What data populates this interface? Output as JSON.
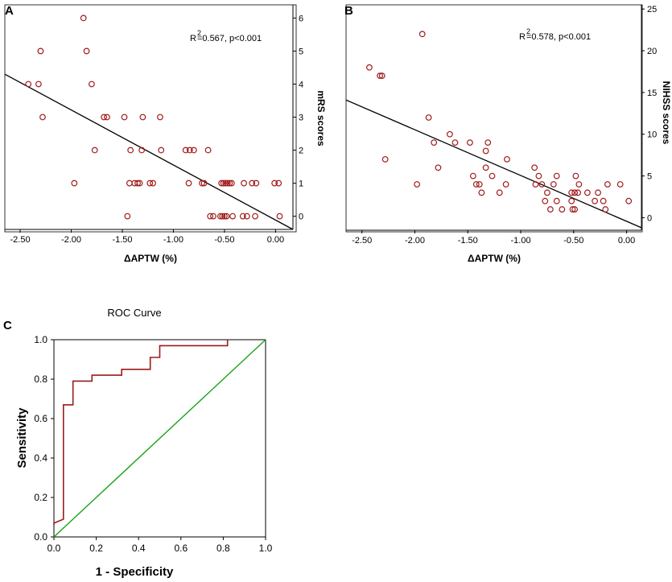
{
  "colors": {
    "marker": "#a01a1a",
    "regression": "#000000",
    "roc_curve": "#9b1b1b",
    "reference": "#1aa31a"
  },
  "chart_data": [
    {
      "panel": "A",
      "type": "scatter",
      "xlabel": "ΔAPTW (%)",
      "ylabel": "mRS scores",
      "xlim": [
        -2.65,
        0.17
      ],
      "ylim": [
        -0.4,
        6.4
      ],
      "xticks": [
        "-2.50",
        "-2.00",
        "-1.50",
        "-1.00",
        "-0.50",
        "0.00"
      ],
      "xtick_values": [
        -2.5,
        -2.0,
        -1.5,
        -1.0,
        -0.5,
        0.0
      ],
      "yticks": [
        "0",
        "1",
        "2",
        "3",
        "4",
        "5",
        "6"
      ],
      "ytick_values": [
        0,
        1,
        2,
        3,
        4,
        5,
        6
      ],
      "annotation": {
        "prefix": "R",
        "sup": "2",
        "text": "=0.567, p<0.001"
      },
      "regression": {
        "x": [
          -2.65,
          0.17
        ],
        "y": [
          4.3,
          -0.4
        ]
      },
      "points": [
        {
          "x": -1.88,
          "y": 6
        },
        {
          "x": -2.3,
          "y": 5
        },
        {
          "x": -1.85,
          "y": 5
        },
        {
          "x": -2.42,
          "y": 4
        },
        {
          "x": -2.32,
          "y": 4
        },
        {
          "x": -1.8,
          "y": 4
        },
        {
          "x": -2.28,
          "y": 3
        },
        {
          "x": -1.68,
          "y": 3
        },
        {
          "x": -1.65,
          "y": 3
        },
        {
          "x": -1.48,
          "y": 3
        },
        {
          "x": -1.3,
          "y": 3
        },
        {
          "x": -1.13,
          "y": 3
        },
        {
          "x": -1.77,
          "y": 2
        },
        {
          "x": -1.42,
          "y": 2
        },
        {
          "x": -1.31,
          "y": 2
        },
        {
          "x": -1.12,
          "y": 2
        },
        {
          "x": -0.88,
          "y": 2
        },
        {
          "x": -0.84,
          "y": 2
        },
        {
          "x": -0.8,
          "y": 2
        },
        {
          "x": -0.66,
          "y": 2
        },
        {
          "x": -1.97,
          "y": 1
        },
        {
          "x": -1.43,
          "y": 1
        },
        {
          "x": -1.38,
          "y": 1
        },
        {
          "x": -1.35,
          "y": 1
        },
        {
          "x": -1.33,
          "y": 1
        },
        {
          "x": -1.23,
          "y": 1
        },
        {
          "x": -1.2,
          "y": 1
        },
        {
          "x": -0.85,
          "y": 1
        },
        {
          "x": -0.72,
          "y": 1
        },
        {
          "x": -0.7,
          "y": 1
        },
        {
          "x": -0.53,
          "y": 1
        },
        {
          "x": -0.51,
          "y": 1
        },
        {
          "x": -0.49,
          "y": 1
        },
        {
          "x": -0.47,
          "y": 1
        },
        {
          "x": -0.45,
          "y": 1
        },
        {
          "x": -0.43,
          "y": 1
        },
        {
          "x": -0.31,
          "y": 1
        },
        {
          "x": -0.23,
          "y": 1
        },
        {
          "x": -0.19,
          "y": 1
        },
        {
          "x": -0.01,
          "y": 1
        },
        {
          "x": 0.03,
          "y": 1
        },
        {
          "x": -1.45,
          "y": 0
        },
        {
          "x": -0.64,
          "y": 0
        },
        {
          "x": -0.61,
          "y": 0
        },
        {
          "x": -0.54,
          "y": 0
        },
        {
          "x": -0.52,
          "y": 0
        },
        {
          "x": -0.5,
          "y": 0
        },
        {
          "x": -0.48,
          "y": 0
        },
        {
          "x": -0.42,
          "y": 0
        },
        {
          "x": -0.32,
          "y": 0
        },
        {
          "x": -0.28,
          "y": 0
        },
        {
          "x": -0.2,
          "y": 0
        },
        {
          "x": 0.04,
          "y": 0
        }
      ]
    },
    {
      "panel": "B",
      "type": "scatter",
      "xlabel": "ΔAPTW (%)",
      "ylabel": "NIHSS scores",
      "xlim": [
        -2.65,
        0.14
      ],
      "ylim": [
        -1.5,
        25.5
      ],
      "xticks": [
        "-2.50",
        "-2.00",
        "-1.50",
        "-1.00",
        "-0.50",
        "0.00"
      ],
      "xtick_values": [
        -2.5,
        -2.0,
        -1.5,
        -1.0,
        -0.5,
        0.0
      ],
      "yticks": [
        "0",
        "5",
        "10",
        "15",
        "20",
        "25"
      ],
      "ytick_values": [
        0,
        5,
        10,
        15,
        20,
        25
      ],
      "annotation": {
        "prefix": "R",
        "sup": "2",
        "text": "=0.578, p<0.001"
      },
      "regression": {
        "x": [
          -2.65,
          0.14
        ],
        "y": [
          14.1,
          -1.2
        ]
      },
      "points": [
        {
          "x": -1.93,
          "y": 22
        },
        {
          "x": -2.43,
          "y": 18
        },
        {
          "x": -2.33,
          "y": 17
        },
        {
          "x": -2.31,
          "y": 17
        },
        {
          "x": -1.87,
          "y": 12
        },
        {
          "x": -1.67,
          "y": 10
        },
        {
          "x": -1.31,
          "y": 9
        },
        {
          "x": -1.82,
          "y": 9
        },
        {
          "x": -1.62,
          "y": 9
        },
        {
          "x": -1.48,
          "y": 9
        },
        {
          "x": -1.33,
          "y": 8
        },
        {
          "x": -1.13,
          "y": 7
        },
        {
          "x": -2.28,
          "y": 7
        },
        {
          "x": -1.78,
          "y": 6
        },
        {
          "x": -1.33,
          "y": 6
        },
        {
          "x": -0.87,
          "y": 6
        },
        {
          "x": -1.45,
          "y": 5
        },
        {
          "x": -1.27,
          "y": 5
        },
        {
          "x": -0.83,
          "y": 5
        },
        {
          "x": -0.66,
          "y": 5
        },
        {
          "x": -0.48,
          "y": 5
        },
        {
          "x": -1.98,
          "y": 4
        },
        {
          "x": -1.42,
          "y": 4
        },
        {
          "x": -1.39,
          "y": 4
        },
        {
          "x": -1.14,
          "y": 4
        },
        {
          "x": -0.86,
          "y": 4
        },
        {
          "x": -0.8,
          "y": 4
        },
        {
          "x": -0.69,
          "y": 4
        },
        {
          "x": -0.45,
          "y": 4
        },
        {
          "x": -0.18,
          "y": 4
        },
        {
          "x": -0.06,
          "y": 4
        },
        {
          "x": -1.37,
          "y": 3
        },
        {
          "x": -1.2,
          "y": 3
        },
        {
          "x": -0.75,
          "y": 3
        },
        {
          "x": -0.52,
          "y": 3
        },
        {
          "x": -0.49,
          "y": 3
        },
        {
          "x": -0.46,
          "y": 3
        },
        {
          "x": -0.37,
          "y": 3
        },
        {
          "x": -0.27,
          "y": 3
        },
        {
          "x": -0.77,
          "y": 2
        },
        {
          "x": -0.66,
          "y": 2
        },
        {
          "x": -0.52,
          "y": 2
        },
        {
          "x": -0.3,
          "y": 2
        },
        {
          "x": -0.22,
          "y": 2
        },
        {
          "x": 0.02,
          "y": 2
        },
        {
          "x": -0.72,
          "y": 1
        },
        {
          "x": -0.61,
          "y": 1
        },
        {
          "x": -0.51,
          "y": 1
        },
        {
          "x": -0.49,
          "y": 1
        },
        {
          "x": -0.2,
          "y": 1
        }
      ]
    },
    {
      "panel": "C",
      "type": "line",
      "title": "ROC Curve",
      "xlabel": "1 - Specificity",
      "ylabel": "Sensitivity",
      "xlim": [
        0,
        1
      ],
      "ylim": [
        0,
        1
      ],
      "xticks": [
        "0.0",
        "0.2",
        "0.4",
        "0.6",
        "0.8",
        "1.0"
      ],
      "xtick_values": [
        0,
        0.2,
        0.4,
        0.6,
        0.8,
        1.0
      ],
      "yticks": [
        "0.0",
        "0.2",
        "0.4",
        "0.6",
        "0.8",
        "1.0"
      ],
      "ytick_values": [
        0,
        0.2,
        0.4,
        0.6,
        0.8,
        1.0
      ],
      "series": [
        {
          "name": "ROC",
          "x": [
            0,
            0,
            0.045,
            0.045,
            0.045,
            0.09,
            0.09,
            0.18,
            0.18,
            0.32,
            0.32,
            0.455,
            0.455,
            0.5,
            0.5,
            0.82,
            0.82
          ],
          "y": [
            0.06,
            0.07,
            0.09,
            0.67,
            0.67,
            0.67,
            0.79,
            0.79,
            0.82,
            0.82,
            0.85,
            0.85,
            0.91,
            0.91,
            0.97,
            0.97,
            1.0
          ]
        },
        {
          "name": "Reference",
          "x": [
            0,
            1
          ],
          "y": [
            0,
            1
          ]
        }
      ]
    }
  ]
}
